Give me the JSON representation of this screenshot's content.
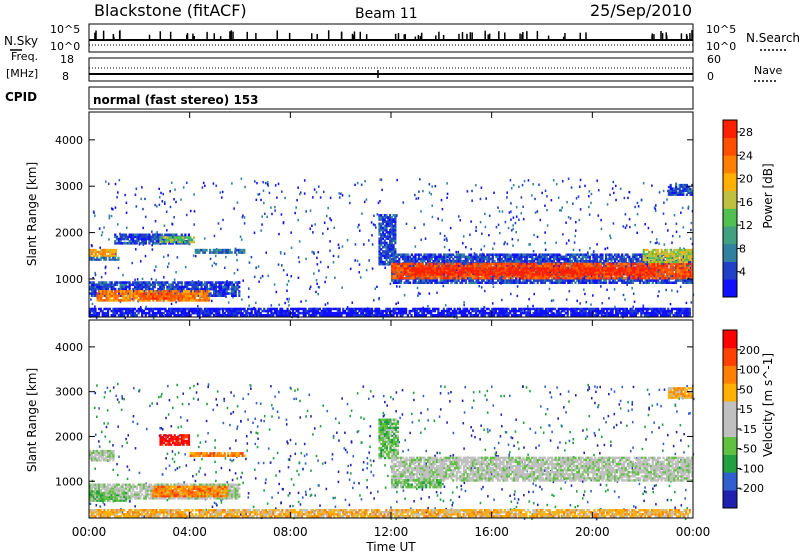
{
  "header": {
    "station": "Blackstone (fitACF)",
    "beam": "Beam 11",
    "date": "25/Sep/2010"
  },
  "top_panels": {
    "nsky_label": "N.Sky",
    "nsky_ticks": [
      "10^5",
      "10^0"
    ],
    "nsearch_label": "N.Search",
    "nsearch_ticks": [
      "10^5",
      "10^0"
    ],
    "freq_label_1": "Freq.",
    "freq_label_2": "[MHz]",
    "freq_ticks": [
      "18",
      "8"
    ],
    "nave_label": "Nave",
    "nave_ticks": [
      "60",
      "0"
    ],
    "cpid_label": "CPID",
    "cpid_text": "normal (fast stereo) 153"
  },
  "chart_data": [
    {
      "type": "heatmap",
      "name": "power",
      "ylabel": "Slant Range [km]",
      "ylim": [
        180,
        4600
      ],
      "yticks": [
        "1000",
        "2000",
        "3000",
        "4000"
      ],
      "xlim_hours": [
        0,
        24
      ],
      "colorbar": {
        "label": "Power [dB]",
        "ticks": [
          "4",
          "8",
          "12",
          "16",
          "20",
          "24",
          "28"
        ],
        "colors": [
          "#1010ff",
          "#2040c8",
          "#3080a0",
          "#40a080",
          "#50c050",
          "#c0c040",
          "#ffb000",
          "#ff8000",
          "#ff5000",
          "#ff2000"
        ]
      },
      "bands": [
        {
          "t0": 0.0,
          "t1": 1.1,
          "r0": 1480,
          "r1": 1650,
          "c": 6
        },
        {
          "t0": 0.0,
          "t1": 1.2,
          "r0": 1400,
          "r1": 1480,
          "c": 2
        },
        {
          "t0": 0.0,
          "t1": 6.0,
          "r0": 620,
          "r1": 950,
          "c": 1
        },
        {
          "t0": 0.3,
          "t1": 4.8,
          "r0": 520,
          "r1": 760,
          "c": 7
        },
        {
          "t0": 2.0,
          "t1": 3.8,
          "r0": 560,
          "r1": 700,
          "c": 8
        },
        {
          "t0": 1.0,
          "t1": 4.0,
          "r0": 1750,
          "r1": 1980,
          "c": 1
        },
        {
          "t0": 2.8,
          "t1": 4.2,
          "r0": 1780,
          "r1": 1920,
          "c": 4
        },
        {
          "t0": 4.2,
          "t1": 6.2,
          "r0": 1550,
          "r1": 1650,
          "c": 2
        },
        {
          "t0": 0.0,
          "t1": 23.9,
          "r0": 200,
          "r1": 380,
          "c": 0
        },
        {
          "t0": 11.5,
          "t1": 12.2,
          "r0": 1300,
          "r1": 2400,
          "c": 1
        },
        {
          "t0": 12.0,
          "t1": 24.0,
          "r0": 900,
          "r1": 1550,
          "c": 1
        },
        {
          "t0": 12.0,
          "t1": 24.0,
          "r0": 1000,
          "r1": 1350,
          "c": 8
        },
        {
          "t0": 12.5,
          "t1": 22.5,
          "r0": 1080,
          "r1": 1250,
          "c": 9
        },
        {
          "t0": 22.0,
          "t1": 24.0,
          "r0": 1350,
          "r1": 1650,
          "c": 5
        },
        {
          "t0": 23.0,
          "t1": 24.0,
          "r0": 2800,
          "r1": 3050,
          "c": 1
        }
      ]
    },
    {
      "type": "heatmap",
      "name": "velocity",
      "ylabel": "Slant Range [km]",
      "ylim": [
        180,
        4600
      ],
      "yticks": [
        "1000",
        "2000",
        "3000",
        "4000"
      ],
      "xlim_hours": [
        0,
        24
      ],
      "xticks": [
        "00:00",
        "04:00",
        "08:00",
        "12:00",
        "16:00",
        "20:00",
        "00:00"
      ],
      "xlabel": "Time UT",
      "colorbar": {
        "label": "Velocity [m s^-1]",
        "ticks": [
          "200",
          "100",
          "50",
          "15",
          "-15",
          "-50",
          "-100",
          "-200"
        ],
        "colors": [
          "#2020b0",
          "#3060d0",
          "#20a040",
          "#60c040",
          "#c0c0c0",
          "#c0c0c0",
          "#ffb000",
          "#ff8000",
          "#ff4000",
          "#ff0000"
        ]
      },
      "bands": [
        {
          "t0": 0.0,
          "t1": 1.0,
          "r0": 1450,
          "r1": 1700,
          "c": 4
        },
        {
          "t0": 0.0,
          "t1": 6.0,
          "r0": 600,
          "r1": 950,
          "c": 4
        },
        {
          "t0": 0.0,
          "t1": 1.5,
          "r0": 550,
          "r1": 800,
          "c": 3
        },
        {
          "t0": 2.5,
          "t1": 5.5,
          "r0": 650,
          "r1": 900,
          "c": 7
        },
        {
          "t0": 2.8,
          "t1": 4.0,
          "r0": 1800,
          "r1": 2050,
          "c": 9
        },
        {
          "t0": 4.0,
          "t1": 6.2,
          "r0": 1550,
          "r1": 1650,
          "c": 7
        },
        {
          "t0": 11.5,
          "t1": 12.3,
          "r0": 1500,
          "r1": 2400,
          "c": 3
        },
        {
          "t0": 12.0,
          "t1": 24.0,
          "r0": 1000,
          "r1": 1550,
          "c": 4
        },
        {
          "t0": 12.0,
          "t1": 14.0,
          "r0": 850,
          "r1": 1050,
          "c": 3
        },
        {
          "t0": 0.0,
          "t1": 23.9,
          "r0": 200,
          "r1": 380,
          "c": 6
        },
        {
          "t0": 23.0,
          "t1": 24.0,
          "r0": 2850,
          "r1": 3100,
          "c": 6
        }
      ]
    }
  ]
}
